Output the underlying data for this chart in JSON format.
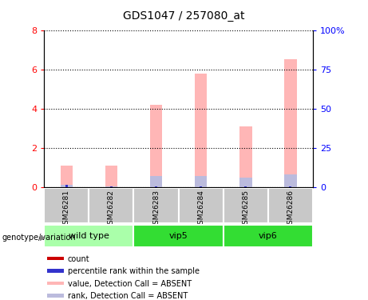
{
  "title": "GDS1047 / 257080_at",
  "samples": [
    "GSM26281",
    "GSM26282",
    "GSM26283",
    "GSM26284",
    "GSM26285",
    "GSM26286"
  ],
  "value_absent": [
    1.1,
    1.1,
    4.2,
    5.8,
    3.1,
    6.5
  ],
  "rank_absent_left": [
    0.13,
    0.07,
    0.58,
    0.58,
    0.5,
    0.68
  ],
  "count_red": [
    0.07,
    0.04,
    0.04,
    0.04,
    0.04,
    0.04
  ],
  "percentile_rank": [
    0.12,
    0.04,
    0.04,
    0.04,
    0.04,
    0.04
  ],
  "ylim_left": [
    0,
    8
  ],
  "ylim_right": [
    0,
    100
  ],
  "yticks_left": [
    0,
    2,
    4,
    6,
    8
  ],
  "yticks_right": [
    0,
    25,
    50,
    75,
    100
  ],
  "yticklabels_left": [
    "0",
    "2",
    "4",
    "6",
    "8"
  ],
  "yticklabels_right": [
    "0",
    "25",
    "50",
    "75",
    "100%"
  ],
  "color_count": "#cc0000",
  "color_percentile": "#3333cc",
  "color_value_absent": "#FFB6B6",
  "color_rank_absent": "#BBBBDD",
  "sample_box_color": "#C8C8C8",
  "wild_type_color": "#AAFFAA",
  "vip5_color": "#33DD33",
  "vip6_color": "#33DD33",
  "legend_items": [
    {
      "label": "count",
      "color": "#cc0000"
    },
    {
      "label": "percentile rank within the sample",
      "color": "#3333cc"
    },
    {
      "label": "value, Detection Call = ABSENT",
      "color": "#FFB6B6"
    },
    {
      "label": "rank, Detection Call = ABSENT",
      "color": "#BBBBDD"
    }
  ],
  "groups_info": [
    {
      "label": "wild type",
      "start": 0,
      "end": 2,
      "color": "#AAFFAA"
    },
    {
      "label": "vip5",
      "start": 2,
      "end": 4,
      "color": "#33DD33"
    },
    {
      "label": "vip6",
      "start": 4,
      "end": 6,
      "color": "#33DD33"
    }
  ]
}
